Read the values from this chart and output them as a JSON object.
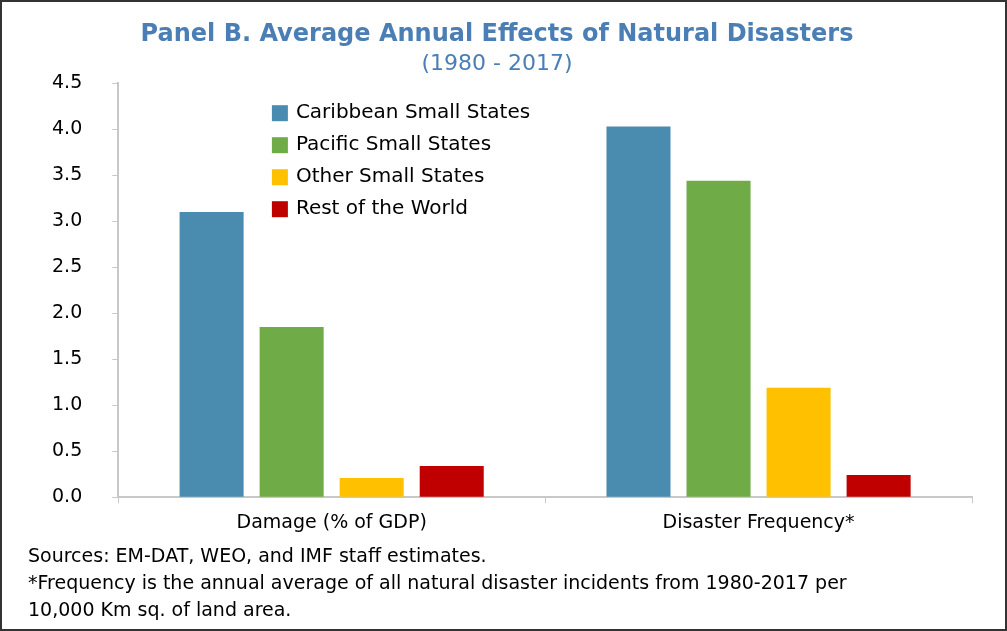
{
  "chart_data": {
    "type": "bar",
    "title": "Panel B. Average Annual Effects of Natural Disasters",
    "subtitle": "(1980 - 2017)",
    "categories": [
      "Damage (% of GDP)",
      "Disaster Frequency*"
    ],
    "series": [
      {
        "name": "Caribbean Small States",
        "color": "#4a8cb0",
        "values": [
          3.1,
          4.03
        ]
      },
      {
        "name": "Pacific Small States",
        "color": "#6fab47",
        "values": [
          1.85,
          3.44
        ]
      },
      {
        "name": "Other Small States",
        "color": "#ffc000",
        "values": [
          0.21,
          1.19
        ]
      },
      {
        "name": "Rest of the World",
        "color": "#c00000",
        "values": [
          0.34,
          0.24
        ]
      }
    ],
    "ylim": [
      0,
      4.5
    ],
    "yticks": [
      {
        "value": 0,
        "label": "0.0"
      },
      {
        "value": 0.5,
        "label": "0.5"
      },
      {
        "value": 1,
        "label": "1.0"
      },
      {
        "value": 1.5,
        "label": "1.5"
      },
      {
        "value": 2,
        "label": "2.0"
      },
      {
        "value": 2.5,
        "label": "2.5"
      },
      {
        "value": 3,
        "label": "3.0"
      },
      {
        "value": 3.5,
        "label": "3.5"
      },
      {
        "value": 4,
        "label": "4.0"
      },
      {
        "value": 4.5,
        "label": "4.5"
      }
    ],
    "grid": false,
    "legend": "top left",
    "annotations": [
      "Sources: EM-DAT, WEO, and IMF staff estimates.",
      "*Frequency is the annual average of all natural disaster incidents from 1980-2017 per 10,000 Km sq. of land area."
    ]
  }
}
